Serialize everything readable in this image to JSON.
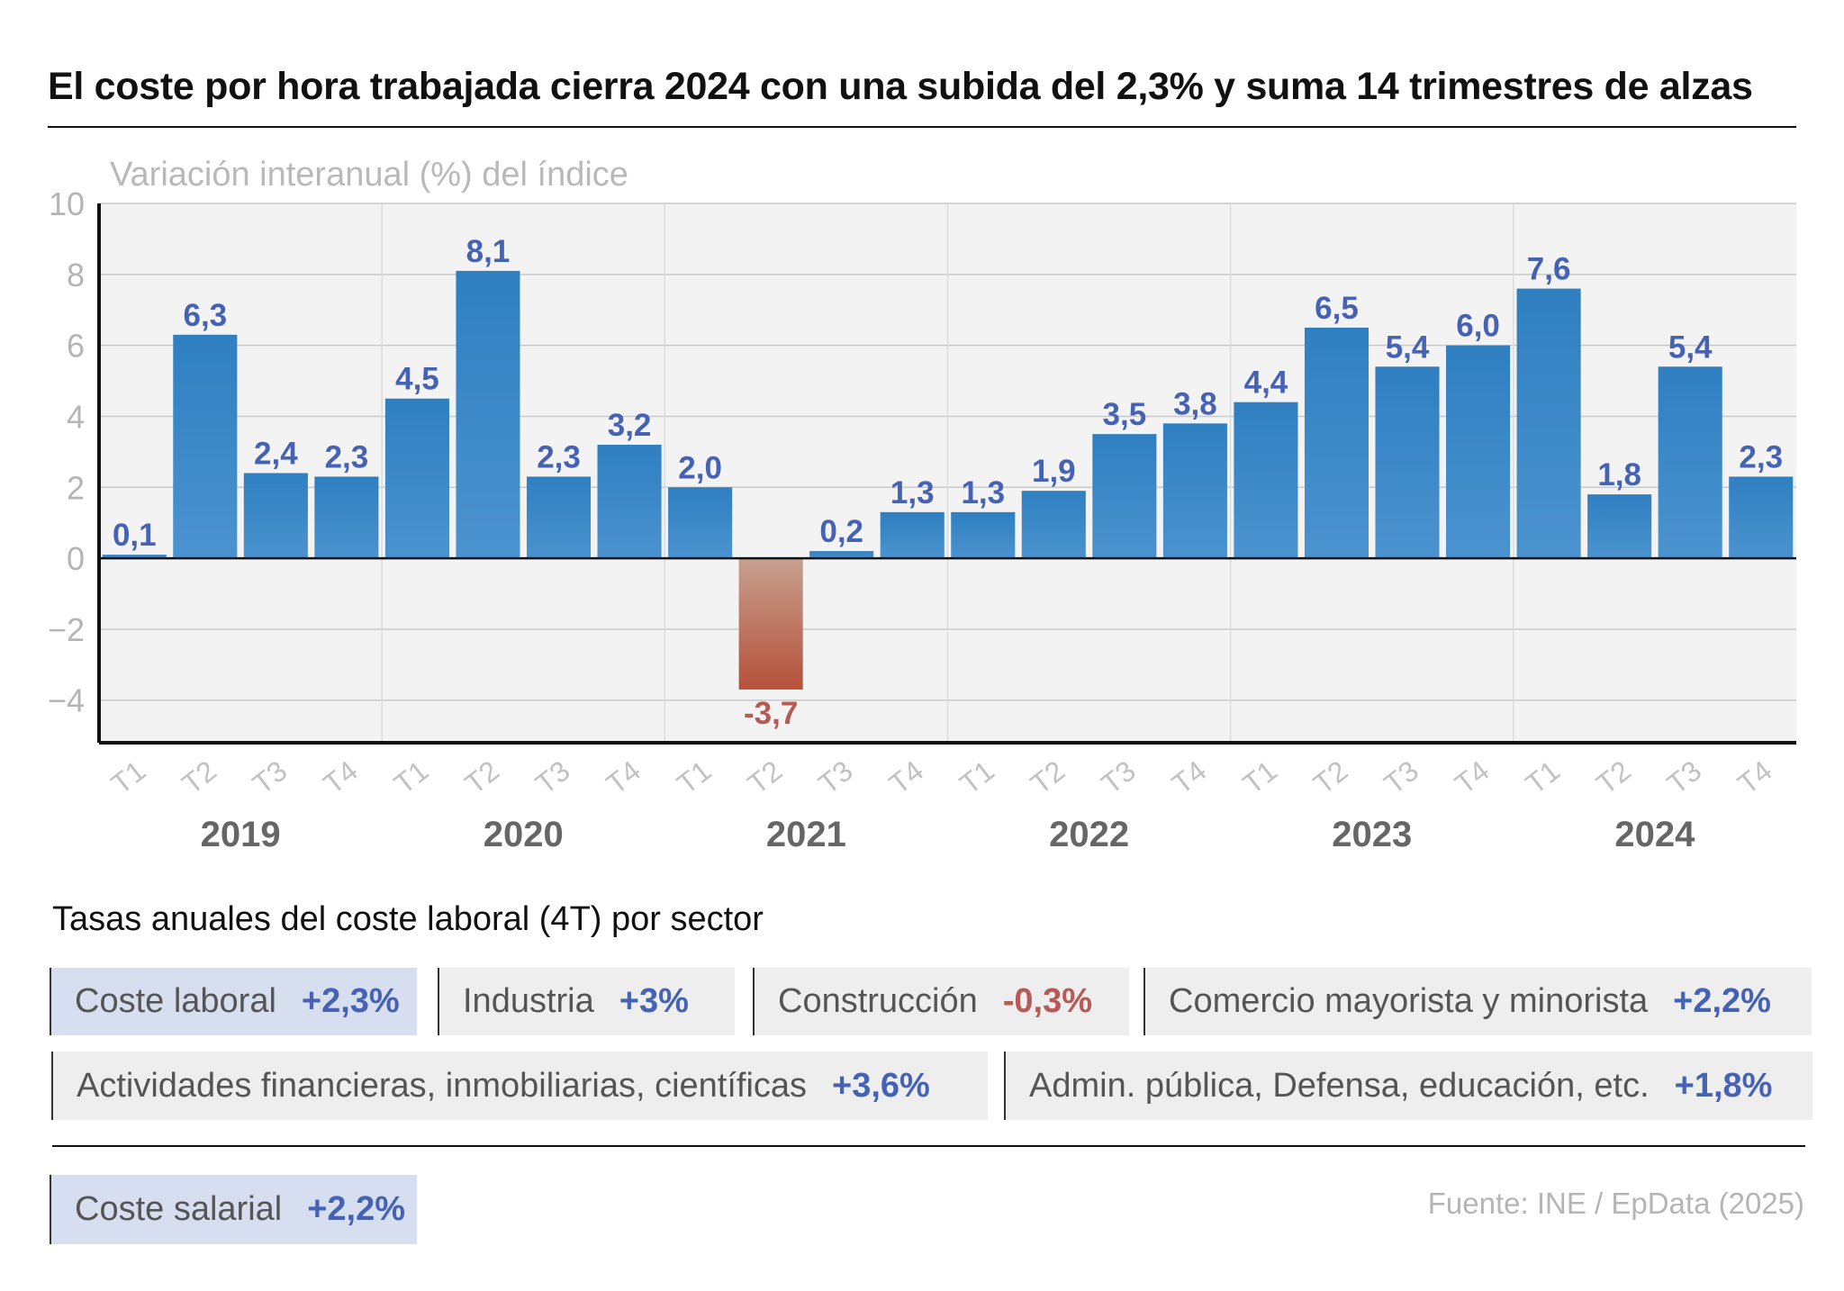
{
  "title": "El coste por hora trabajada cierra 2024 con una subida del 2,3% y suma 14 trimestres de alzas",
  "chart_data": {
    "type": "bar",
    "subtitle": "Variación interanual (%) del índice",
    "categories": [
      "T1",
      "T2",
      "T3",
      "T4",
      "T1",
      "T2",
      "T3",
      "T4",
      "T1",
      "T2",
      "T3",
      "T4",
      "T1",
      "T2",
      "T3",
      "T4",
      "T1",
      "T2",
      "T3",
      "T4",
      "T1",
      "T2",
      "T3",
      "T4"
    ],
    "years": [
      "2019",
      "2020",
      "2021",
      "2022",
      "2023",
      "2024"
    ],
    "values": [
      0.1,
      6.3,
      2.4,
      2.3,
      4.5,
      8.1,
      2.3,
      3.2,
      2.0,
      -3.7,
      0.2,
      1.3,
      1.3,
      1.9,
      3.5,
      3.8,
      4.4,
      6.5,
      5.4,
      6.0,
      7.6,
      1.8,
      5.4,
      2.3
    ],
    "data_labels": [
      "0,1",
      "6,3",
      "2,4",
      "2,3",
      "4,5",
      "8,1",
      "2,3",
      "3,2",
      "2,0",
      "-3,7",
      "0,2",
      "1,3",
      "1,3",
      "1,9",
      "3,5",
      "3,8",
      "4,4",
      "6,5",
      "5,4",
      "6,0",
      "7,6",
      "1,8",
      "5,4",
      "2,3"
    ],
    "yticks": [
      10,
      8,
      6,
      4,
      2,
      0,
      -2,
      -4
    ],
    "ytick_labels": [
      "10",
      "8",
      "6",
      "4",
      "2",
      "0",
      "−2",
      "−4"
    ],
    "ylim": [
      -5.2,
      10
    ],
    "grid": true,
    "colors": {
      "positive": "#2f7fc1",
      "negative": "#b6513a",
      "label_positive": "#4662b4",
      "label_negative": "#b55a55"
    }
  },
  "sectors": {
    "title": "Tasas anuales del coste laboral (4T) por sector",
    "items": [
      {
        "label": "Coste laboral",
        "value": "+2,3%",
        "highlight": true,
        "negative": false
      },
      {
        "label": "Industria",
        "value": "+3%",
        "highlight": false,
        "negative": false
      },
      {
        "label": "Construcción",
        "value": "-0,3%",
        "highlight": false,
        "negative": true
      },
      {
        "label": "Comercio mayorista y minorista",
        "value": "+2,2%",
        "highlight": false,
        "negative": false
      },
      {
        "label": "Actividades financieras, inmobiliarias, científicas",
        "value": "+3,6%",
        "highlight": false,
        "negative": false
      },
      {
        "label": "Admin. pública, Defensa, educación, etc.",
        "value": "+1,8%",
        "highlight": false,
        "negative": false
      }
    ],
    "salary": {
      "label": "Coste salarial",
      "value": "+2,2%",
      "highlight": true,
      "negative": false
    }
  },
  "source": "Fuente: INE / EpData (2025)"
}
